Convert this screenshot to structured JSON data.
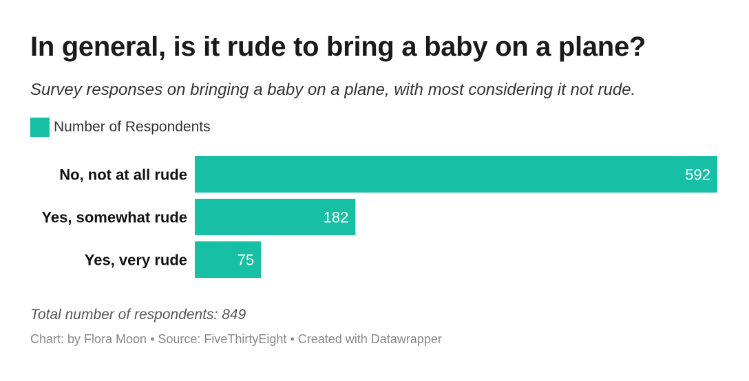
{
  "title": "In general, is it rude to bring a baby on a plane?",
  "subtitle": "Survey responses on bringing a baby on a plane, with most considering it not rude.",
  "note": "Total number of respondents: 849",
  "footer": "Chart: by Flora Moon • Source: FiveThirtyEight • Created with Datawrapper",
  "colors": {
    "bar": "#17bfa4",
    "bar_label": "#ffffff",
    "category_label": "#111111"
  },
  "chart_data": {
    "type": "bar",
    "orientation": "horizontal",
    "categories": [
      "No, not at all rude",
      "Yes, somewhat rude",
      "Yes, very rude"
    ],
    "series": [
      {
        "name": "Number of Respondents",
        "values": [
          592,
          182,
          75
        ]
      }
    ],
    "legend_position": "top-left",
    "grid": false,
    "xlim": [
      0,
      592
    ]
  }
}
